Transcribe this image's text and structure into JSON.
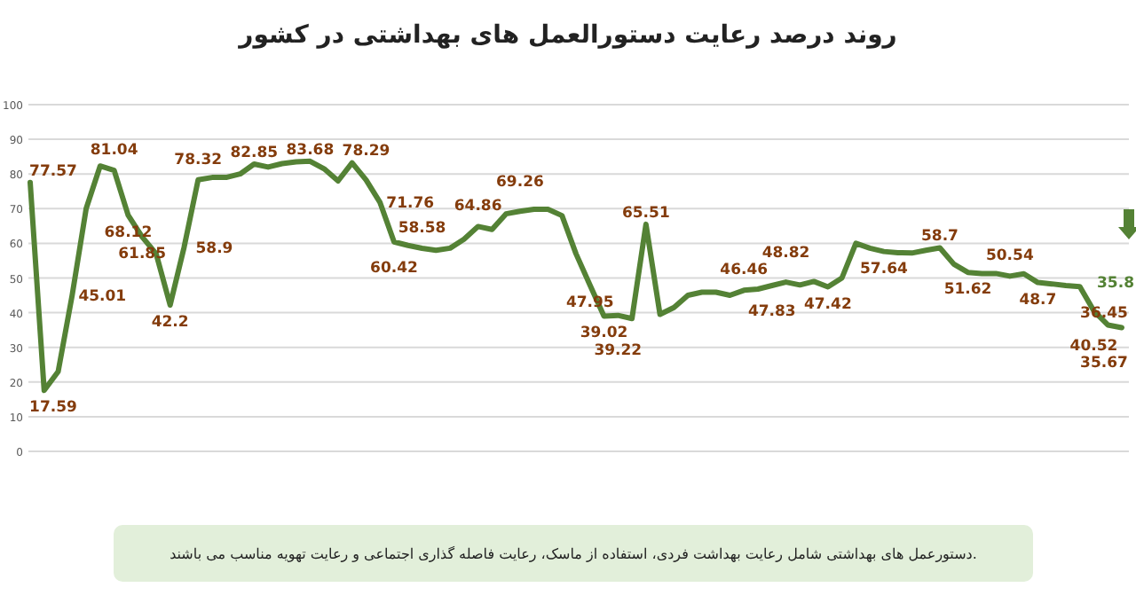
{
  "chart_data": {
    "type": "line",
    "title": "روند درصد رعایت دستورالعمل های بهداشتی در کشور",
    "categories": [
      null,
      null,
      null,
      null,
      null,
      null,
      null,
      null,
      null,
      null,
      null,
      null,
      null,
      null,
      null,
      null,
      null,
      null,
      null,
      null,
      null,
      null,
      null,
      null,
      null,
      null,
      null,
      null,
      null,
      null,
      null,
      null,
      null,
      null,
      null,
      null,
      null,
      null,
      null,
      null,
      null,
      null,
      null,
      null,
      null,
      null,
      null,
      null,
      null,
      null,
      null,
      null,
      null,
      null,
      null,
      null,
      null,
      null,
      null,
      null,
      null,
      null,
      null,
      null,
      null,
      null,
      null,
      null,
      null,
      null,
      null,
      null,
      null,
      null,
      null,
      null,
      null,
      null,
      null
    ],
    "series": [
      {
        "color": "#548235",
        "values": [
          77.57,
          17.59,
          23,
          45.01,
          70,
          82.3,
          81.04,
          68.12,
          61.85,
          57,
          42.2,
          58.9,
          78.32,
          79,
          79,
          80,
          82.85,
          82,
          83,
          83.5,
          83.68,
          81.5,
          78,
          83.2,
          78.29,
          71.76,
          60.42,
          59.4,
          58.58,
          58,
          58.6,
          61.2,
          64.86,
          64,
          68.5,
          69.26,
          69.8,
          69.8,
          68,
          57,
          47.95,
          39.02,
          39.22,
          38.3,
          65.51,
          39.5,
          41.5,
          45,
          45.9,
          45.9,
          45,
          46.46,
          46.8,
          47.83,
          48.82,
          48,
          49,
          47.42,
          50,
          60,
          58.6,
          57.64,
          57.3,
          57.2,
          58,
          58.7,
          54,
          51.62,
          51.3,
          51.3,
          50.54,
          51.2,
          48.7,
          48.3,
          47.8,
          47.5,
          40.52,
          36.45,
          35.67
        ],
        "value_labels": [
          "77.57",
          "17.59",
          null,
          "45.01",
          null,
          null,
          "81.04",
          "68.12",
          "61.85",
          null,
          "42.2",
          "58.9",
          "78.32",
          null,
          null,
          null,
          "82.85",
          null,
          null,
          null,
          "83.68",
          null,
          null,
          null,
          "78.29",
          "71.76",
          "60.42",
          null,
          "58.58",
          null,
          null,
          null,
          "64.86",
          null,
          null,
          "69.26",
          null,
          null,
          null,
          null,
          "47.95",
          "39.02",
          "39.22",
          null,
          "65.51",
          null,
          null,
          null,
          null,
          null,
          null,
          "46.46",
          null,
          "47.83",
          "48.82",
          null,
          null,
          "47.42",
          null,
          null,
          null,
          "57.64",
          null,
          null,
          null,
          "58.7",
          null,
          "51.62",
          null,
          null,
          "50.54",
          null,
          "48.7",
          null,
          null,
          null,
          "40.52",
          "36.45",
          "35.67"
        ]
      }
    ],
    "ylim": [
      0,
      100
    ],
    "yticks": [
      0,
      10,
      20,
      30,
      40,
      50,
      60,
      70,
      80,
      90,
      100
    ],
    "grid": "y",
    "annotations": [
      "35.8",
      "دستورعمل های بهداشتی شامل رعایت بهداشت فردی، استفاده از ماسک، رعایت فاصله گذاری اجتماعی و رعایت تهویه مناسب می باشند."
    ]
  }
}
